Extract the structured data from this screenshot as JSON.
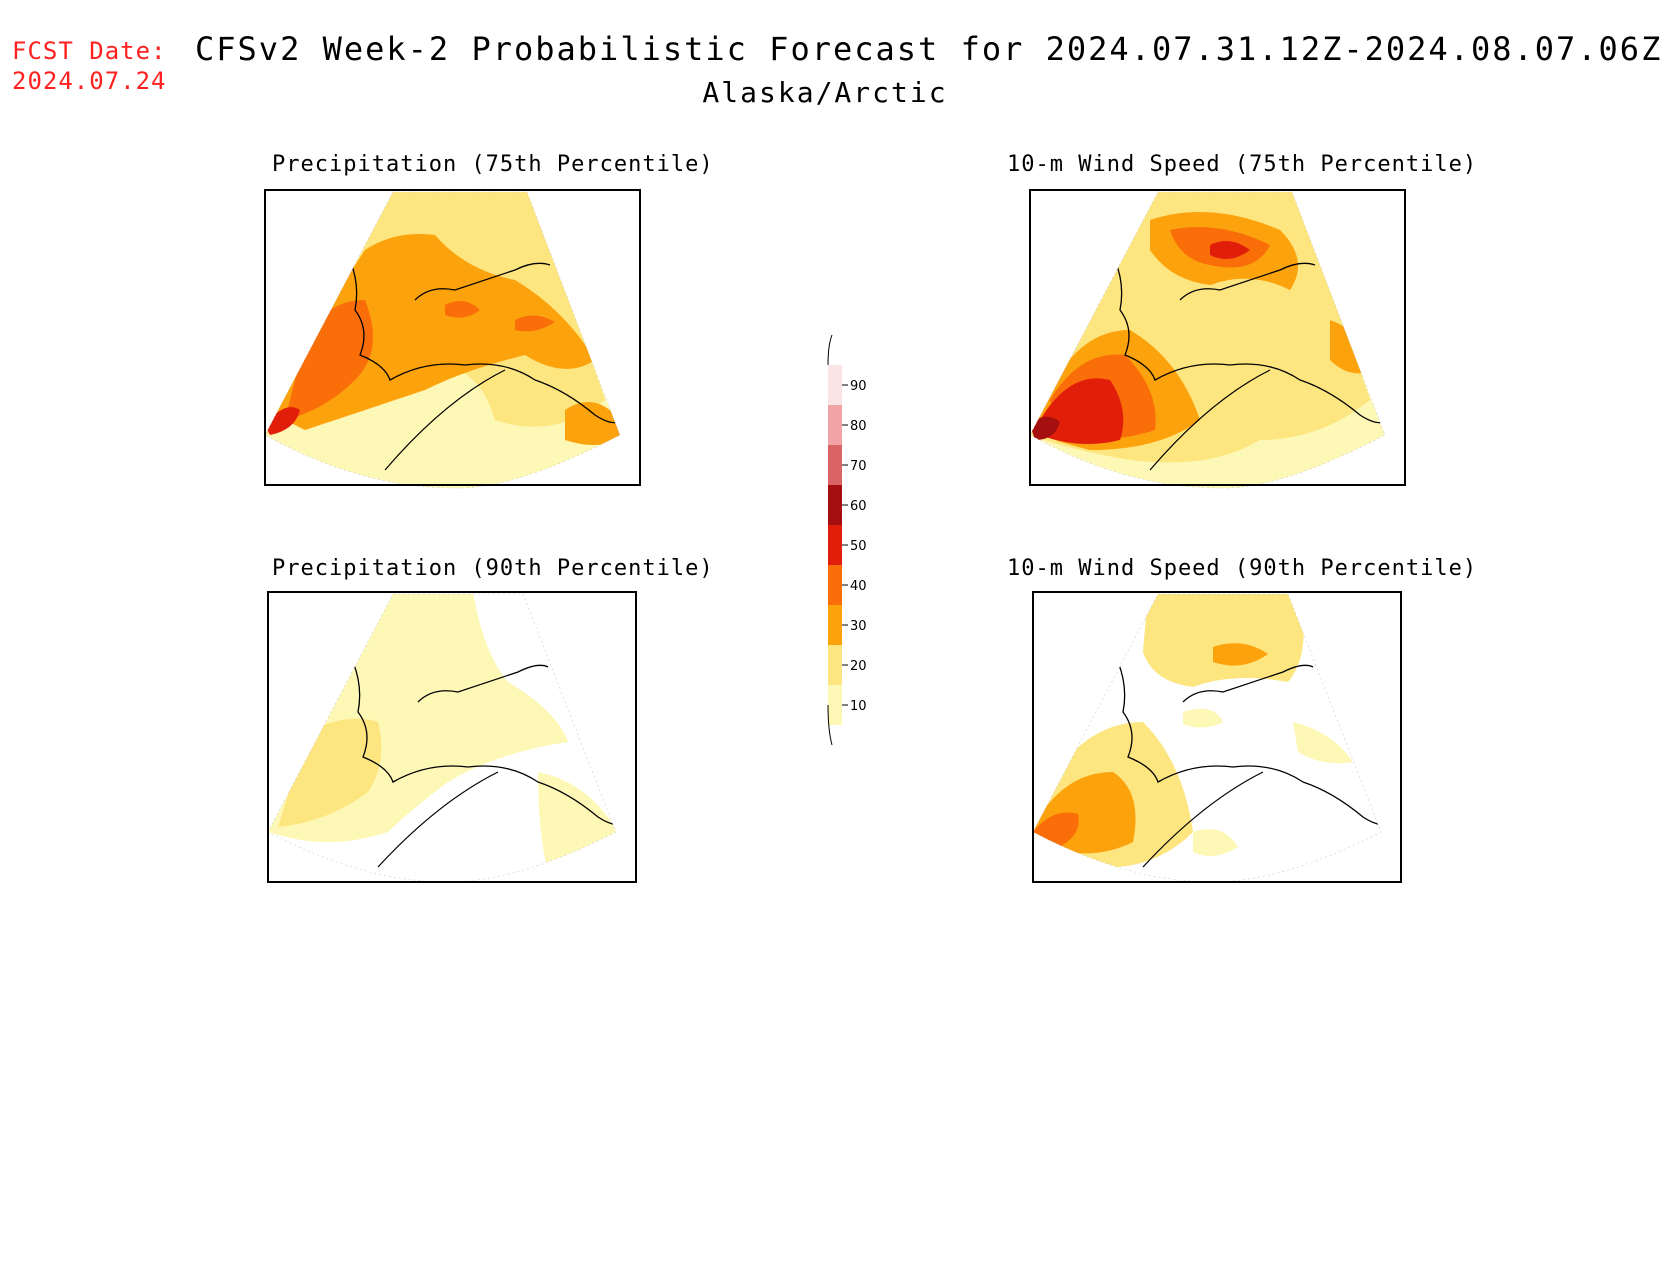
{
  "header": {
    "fcst_label": "FCST Date:",
    "fcst_date": "2024.07.24",
    "title": "CFSv2 Week-2 Probabilistic Forecast for 2024.07.31.12Z-2024.08.07.06Z",
    "region": "Alaska/Arctic"
  },
  "panels": [
    {
      "id": "precip75",
      "title": "Precipitation (75th Percentile)"
    },
    {
      "id": "precip90",
      "title": "Precipitation (90th Percentile)"
    },
    {
      "id": "wind75",
      "title": "10-m Wind Speed (75th Percentile)"
    },
    {
      "id": "wind90",
      "title": "10-m Wind Speed (90th Percentile)"
    }
  ],
  "colorbar": {
    "levels": [
      {
        "label": "90",
        "color": "#fbe4e6"
      },
      {
        "label": "80",
        "color": "#f2a3a6"
      },
      {
        "label": "70",
        "color": "#d96365"
      },
      {
        "label": "60",
        "color": "#a50f0f"
      },
      {
        "label": "50",
        "color": "#e01e0a"
      },
      {
        "label": "40",
        "color": "#fa6e0a"
      },
      {
        "label": "30",
        "color": "#fba20c"
      },
      {
        "label": "20",
        "color": "#fde57f"
      },
      {
        "label": "10",
        "color": "#fdf8b5"
      }
    ]
  }
}
